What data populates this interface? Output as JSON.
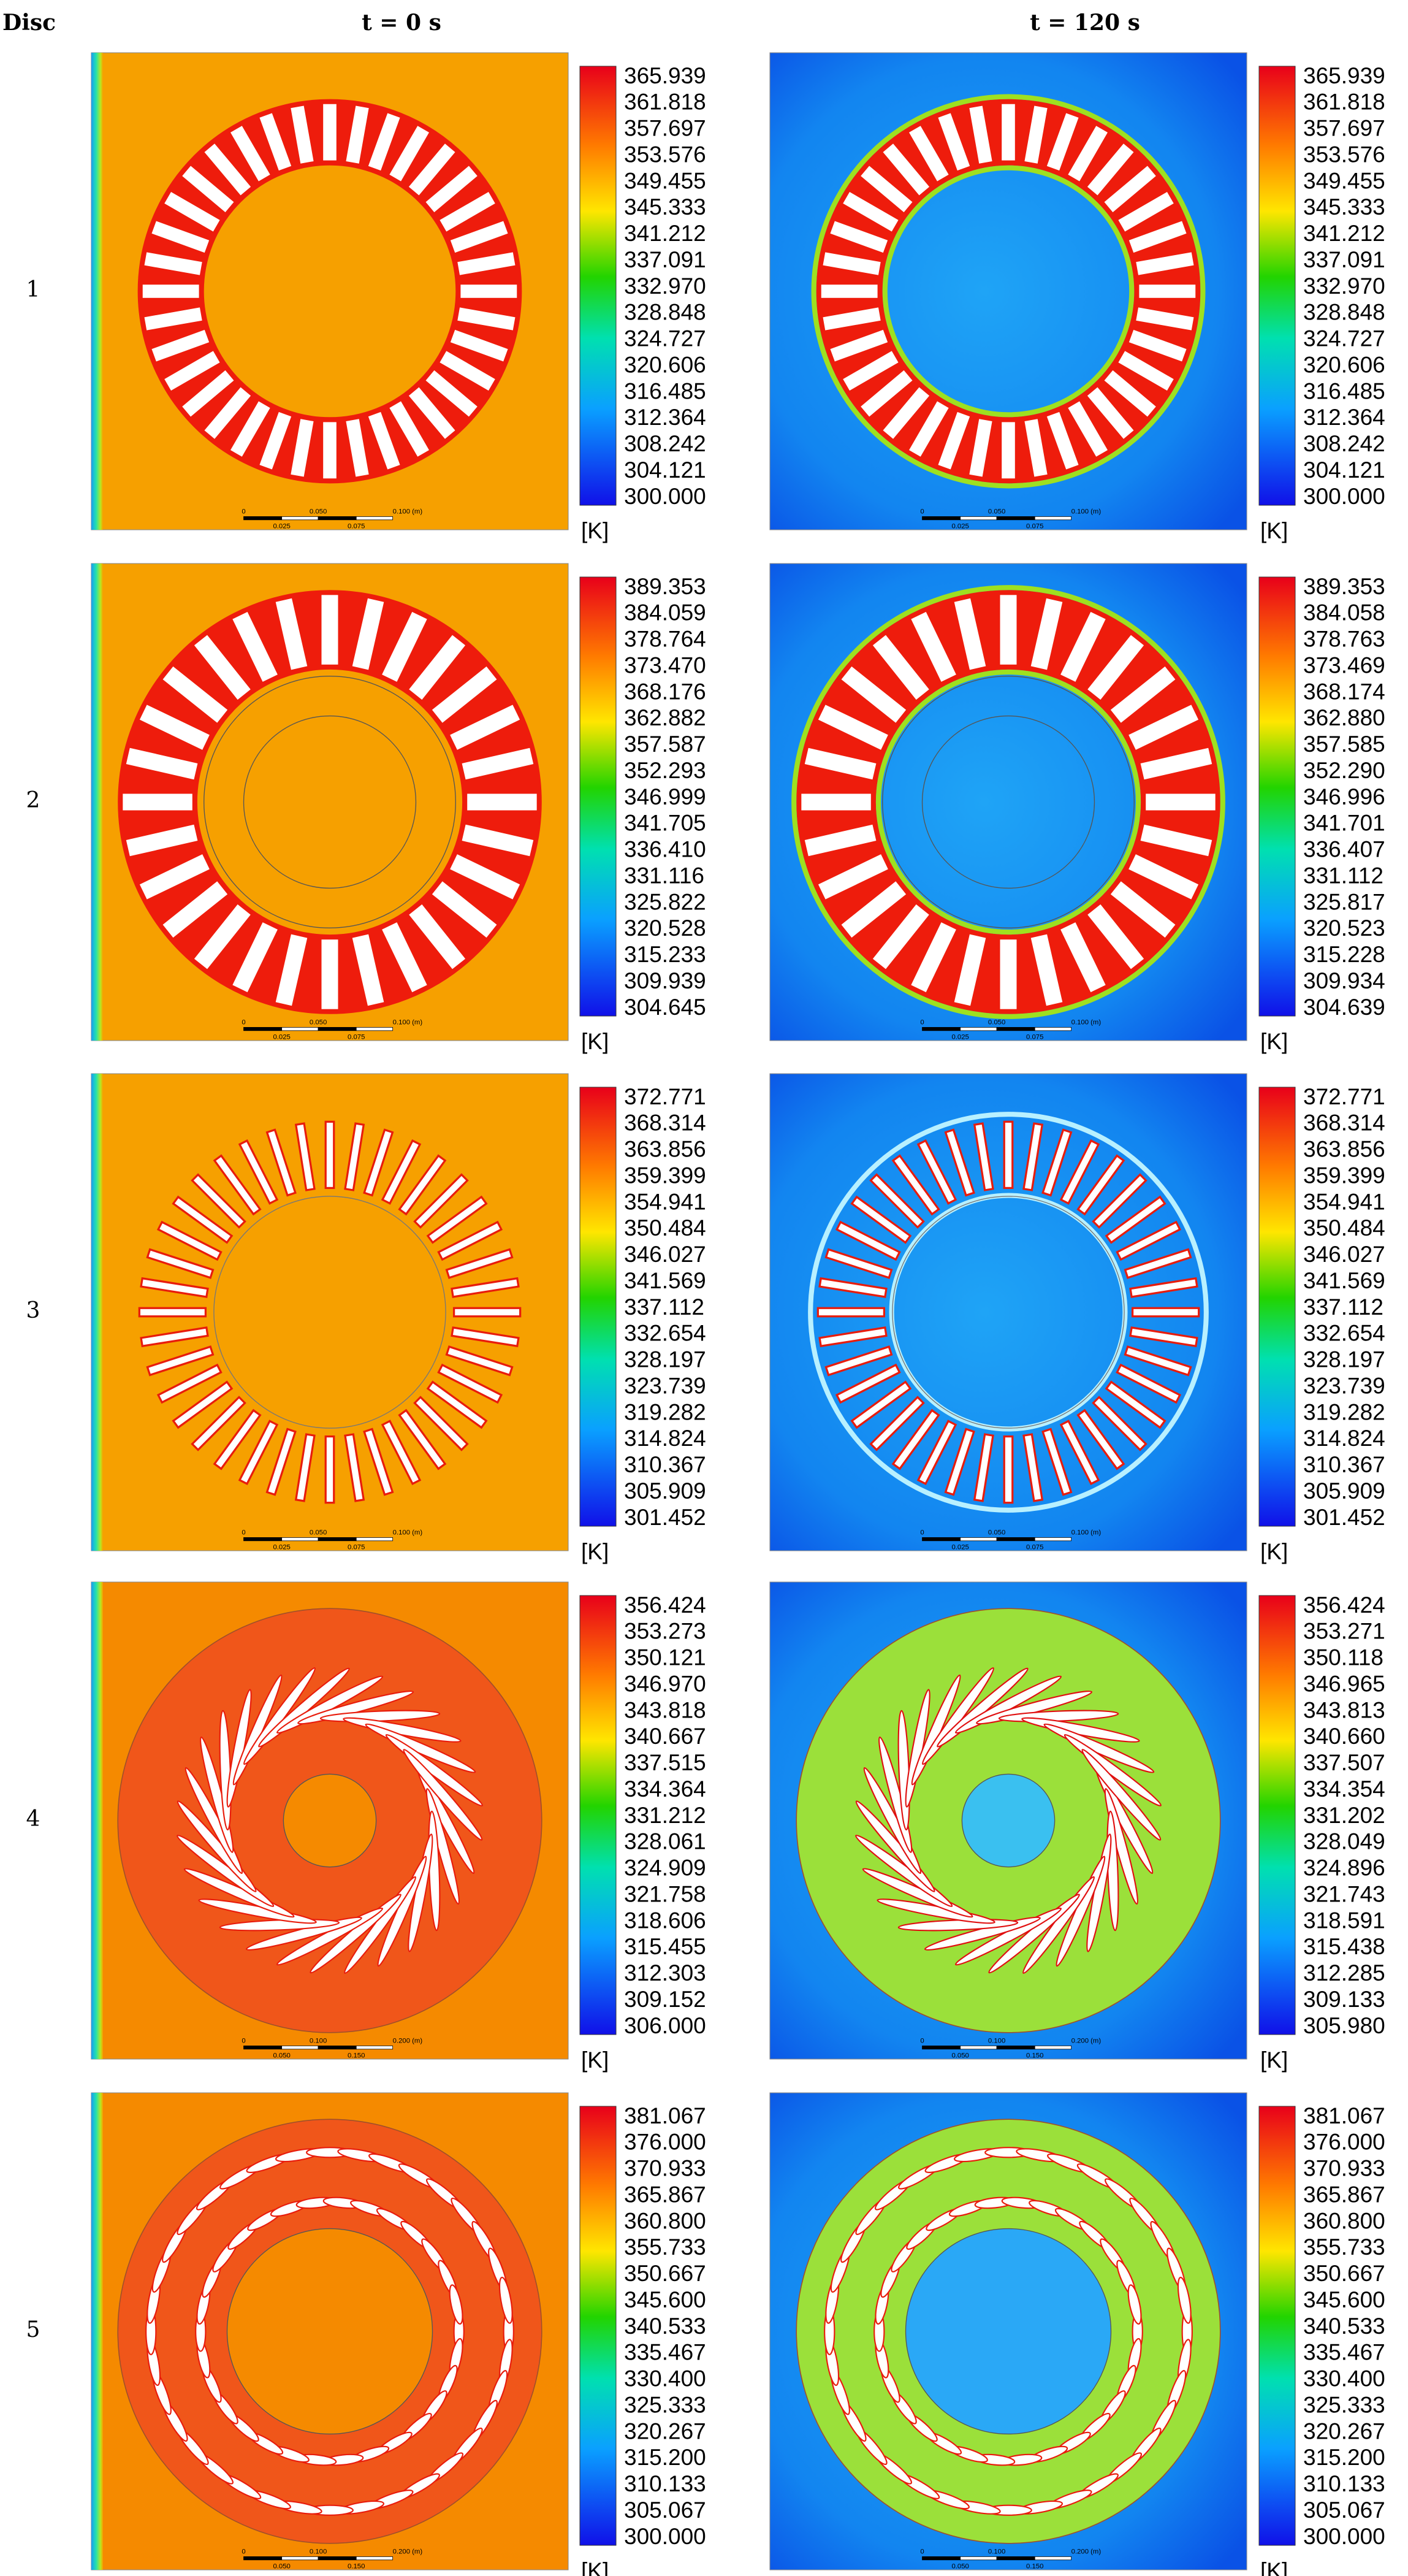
{
  "header": {
    "corner": "Disc",
    "columns": [
      "t = 0 s",
      "t = 120 s"
    ]
  },
  "rows": [
    {
      "label": "1",
      "panels": [
        {
          "legend": [
            "365.939",
            "361.818",
            "357.697",
            "353.576",
            "349.455",
            "345.333",
            "341.212",
            "337.091",
            "332.970",
            "328.848",
            "324.727",
            "320.606",
            "316.485",
            "312.364",
            "308.242",
            "304.121",
            "300.000"
          ],
          "unit": "[K]",
          "scale": {
            "top": [
              "0",
              "0.050",
              "0.100 (m)"
            ],
            "bottom": [
              "0.025",
              "0.075"
            ]
          }
        },
        {
          "legend": [
            "365.939",
            "361.818",
            "357.697",
            "353.576",
            "349.455",
            "345.333",
            "341.212",
            "337.091",
            "332.970",
            "328.848",
            "324.727",
            "320.606",
            "316.485",
            "312.364",
            "308.242",
            "304.121",
            "300.000"
          ],
          "unit": "[K]",
          "scale": {
            "top": [
              "0",
              "0.050",
              "0.100 (m)"
            ],
            "bottom": [
              "0.025",
              "0.075"
            ]
          }
        }
      ]
    },
    {
      "label": "2",
      "panels": [
        {
          "legend": [
            "389.353",
            "384.059",
            "378.764",
            "373.470",
            "368.176",
            "362.882",
            "357.587",
            "352.293",
            "346.999",
            "341.705",
            "336.410",
            "331.116",
            "325.822",
            "320.528",
            "315.233",
            "309.939",
            "304.645"
          ],
          "unit": "[K]",
          "scale": {
            "top": [
              "0",
              "0.050",
              "0.100 (m)"
            ],
            "bottom": [
              "0.025",
              "0.075"
            ]
          }
        },
        {
          "legend": [
            "389.353",
            "384.058",
            "378.763",
            "373.469",
            "368.174",
            "362.880",
            "357.585",
            "352.290",
            "346.996",
            "341.701",
            "336.407",
            "331.112",
            "325.817",
            "320.523",
            "315.228",
            "309.934",
            "304.639"
          ],
          "unit": "[K]",
          "scale": {
            "top": [
              "0",
              "0.050",
              "0.100 (m)"
            ],
            "bottom": [
              "0.025",
              "0.075"
            ]
          }
        }
      ]
    },
    {
      "label": "3",
      "panels": [
        {
          "legend": [
            "372.771",
            "368.314",
            "363.856",
            "359.399",
            "354.941",
            "350.484",
            "346.027",
            "341.569",
            "337.112",
            "332.654",
            "328.197",
            "323.739",
            "319.282",
            "314.824",
            "310.367",
            "305.909",
            "301.452"
          ],
          "unit": "[K]",
          "scale": {
            "top": [
              "0",
              "0.050",
              "0.100 (m)"
            ],
            "bottom": [
              "0.025",
              "0.075"
            ]
          }
        },
        {
          "legend": [
            "372.771",
            "368.314",
            "363.856",
            "359.399",
            "354.941",
            "350.484",
            "346.027",
            "341.569",
            "337.112",
            "332.654",
            "328.197",
            "323.739",
            "319.282",
            "314.824",
            "310.367",
            "305.909",
            "301.452"
          ],
          "unit": "[K]",
          "scale": {
            "top": [
              "0",
              "0.050",
              "0.100 (m)"
            ],
            "bottom": [
              "0.025",
              "0.075"
            ]
          }
        }
      ]
    },
    {
      "label": "4",
      "panels": [
        {
          "legend": [
            "356.424",
            "353.273",
            "350.121",
            "346.970",
            "343.818",
            "340.667",
            "337.515",
            "334.364",
            "331.212",
            "328.061",
            "324.909",
            "321.758",
            "318.606",
            "315.455",
            "312.303",
            "309.152",
            "306.000"
          ],
          "unit": "[K]",
          "scale": {
            "top": [
              "0",
              "0.100",
              "0.200 (m)"
            ],
            "bottom": [
              "0.050",
              "0.150"
            ]
          }
        },
        {
          "legend": [
            "356.424",
            "353.271",
            "350.118",
            "346.965",
            "343.813",
            "340.660",
            "337.507",
            "334.354",
            "331.202",
            "328.049",
            "324.896",
            "321.743",
            "318.591",
            "315.438",
            "312.285",
            "309.133",
            "305.980"
          ],
          "unit": "[K]",
          "scale": {
            "top": [
              "0",
              "0.100",
              "0.200 (m)"
            ],
            "bottom": [
              "0.050",
              "0.150"
            ]
          }
        }
      ]
    },
    {
      "label": "5",
      "panels": [
        {
          "legend": [
            "381.067",
            "376.000",
            "370.933",
            "365.867",
            "360.800",
            "355.733",
            "350.667",
            "345.600",
            "340.533",
            "335.467",
            "330.400",
            "325.333",
            "320.267",
            "315.200",
            "310.133",
            "305.067",
            "300.000"
          ],
          "unit": "[K]",
          "scale": {
            "top": [
              "0",
              "0.100",
              "0.200 (m)"
            ],
            "bottom": [
              "0.050",
              "0.150"
            ]
          }
        },
        {
          "legend": [
            "381.067",
            "376.000",
            "370.933",
            "365.867",
            "360.800",
            "355.733",
            "350.667",
            "345.600",
            "340.533",
            "335.467",
            "330.400",
            "325.333",
            "320.267",
            "315.200",
            "310.133",
            "305.067",
            "300.000"
          ],
          "unit": "[K]",
          "scale": {
            "top": [
              "0",
              "0.100",
              "0.200 (m)"
            ],
            "bottom": [
              "0.050",
              "0.150"
            ]
          }
        }
      ]
    }
  ]
}
